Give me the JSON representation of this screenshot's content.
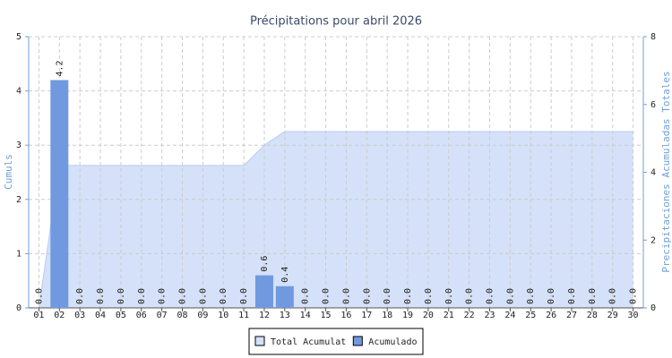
{
  "chart_data": {
    "type": "bar",
    "title": "Précipitations pour abril 2026",
    "y_label": "Cumuls",
    "y2_label": "Precipitaciones Acumuladas Totales",
    "categories": [
      "01",
      "02",
      "03",
      "04",
      "05",
      "06",
      "07",
      "08",
      "09",
      "10",
      "11",
      "12",
      "13",
      "14",
      "15",
      "16",
      "17",
      "18",
      "19",
      "20",
      "21",
      "22",
      "23",
      "24",
      "25",
      "26",
      "27",
      "28",
      "29",
      "30"
    ],
    "series": [
      {
        "name": "Total Acumulat",
        "type": "area",
        "axis": "y2",
        "color": "#d4e1f9",
        "values": [
          0,
          4.2,
          4.2,
          4.2,
          4.2,
          4.2,
          4.2,
          4.2,
          4.2,
          4.2,
          4.2,
          4.8,
          5.2,
          5.2,
          5.2,
          5.2,
          5.2,
          5.2,
          5.2,
          5.2,
          5.2,
          5.2,
          5.2,
          5.2,
          5.2,
          5.2,
          5.2,
          5.2,
          5.2,
          5.2
        ]
      },
      {
        "name": "Acumulado",
        "type": "bar",
        "color": "#7199e0",
        "values": [
          0,
          4.2,
          0,
          0,
          0,
          0,
          0,
          0,
          0,
          0,
          0,
          0.6,
          0.4,
          0,
          0,
          0,
          0,
          0,
          0,
          0,
          0,
          0,
          0,
          0,
          0,
          0,
          0,
          0,
          0,
          0
        ],
        "value_labels": [
          "0.0",
          "4.2",
          "0.0",
          "0.0",
          "0.0",
          "0.0",
          "0.0",
          "0.0",
          "0.0",
          "0.0",
          "0.0",
          "0.6",
          "0.4",
          "0.0",
          "0.0",
          "0.0",
          "0.0",
          "0.0",
          "0.0",
          "0.0",
          "0.0",
          "0.0",
          "0.0",
          "0.0",
          "0.0",
          "0.0",
          "0.0",
          "0.0",
          "0.0",
          "0.0"
        ]
      }
    ],
    "ylim": [
      0,
      5
    ],
    "yticks": [
      0,
      1,
      2,
      3,
      4,
      5
    ],
    "y2lim": [
      0,
      8
    ],
    "y2ticks": [
      0,
      2,
      4,
      6,
      8
    ],
    "grid": true
  }
}
